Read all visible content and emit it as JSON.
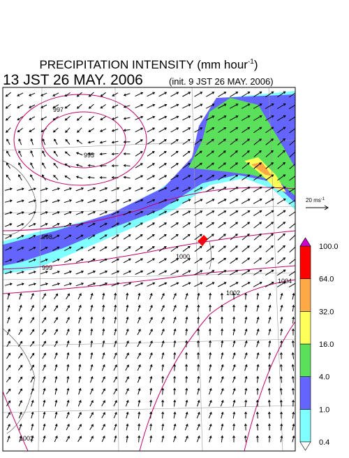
{
  "header": {
    "title": "PRECIPITATION INTENSITY (mm hour",
    "title_sup": "-1",
    "title_end": ")",
    "valid_time": "13 JST 26 MAY. 2006",
    "init_time": "(init. 9 JST 26 MAY. 2006)"
  },
  "reference_vector": {
    "label": "20 ms",
    "label_sup": "-1"
  },
  "colorbar": {
    "ticks": [
      "0.4",
      "1.0",
      "4.0",
      "16.0",
      "32.0",
      "64.0",
      "100.0"
    ],
    "colors": [
      "#7fffff",
      "#6464ff",
      "#5ae05a",
      "#ffff5a",
      "#ffa846",
      "#ff0000"
    ],
    "under_color": "#ffffff",
    "over_color": "#cc00cc"
  },
  "contour_labels": [
    "997",
    "995",
    "998",
    "999",
    "1000",
    "1002",
    "1004",
    "1002"
  ]
}
